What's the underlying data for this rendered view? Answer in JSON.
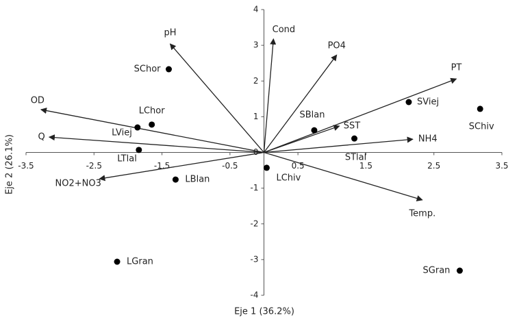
{
  "chart_data": {
    "type": "biplot",
    "xlabel": "Eje 1 (36.2%)",
    "ylabel": "Eje 2 (26.1%)",
    "xlim": [
      -3.5,
      3.5
    ],
    "ylim": [
      -4,
      4
    ],
    "xticks": [
      -3.5,
      -2.5,
      -1.5,
      -0.5,
      0.5,
      1.5,
      2.5,
      3.5
    ],
    "yticks": [
      -4,
      -3,
      -2,
      -1,
      0,
      1,
      2,
      3,
      4
    ],
    "points": {
      "color": "#000000",
      "labels": [
        "SChor",
        "LChor",
        "LViej",
        "LTlal",
        "LBlan",
        "LChiv",
        "SBlan",
        "STlal",
        "SViej",
        "SChiv",
        "LGran",
        "SGran"
      ],
      "x": [
        -1.4,
        -1.65,
        -1.86,
        -1.84,
        -1.3,
        0.04,
        0.74,
        1.33,
        2.13,
        3.18,
        -2.16,
        2.88
      ],
      "y": [
        2.33,
        0.78,
        0.7,
        0.07,
        -0.76,
        -0.43,
        0.62,
        0.39,
        1.41,
        1.22,
        -3.06,
        -3.31
      ]
    },
    "vectors": {
      "color": "#222222",
      "labels": [
        "pH",
        "Cond",
        "PO4",
        "PT",
        "OD",
        "Q",
        "NO2+NO3",
        "SST",
        "NH4",
        "Temp."
      ],
      "x": [
        -1.38,
        0.14,
        1.07,
        2.83,
        -3.28,
        -3.16,
        -2.42,
        1.11,
        2.19,
        2.33
      ],
      "y": [
        3.04,
        3.18,
        2.73,
        2.06,
        1.2,
        0.43,
        -0.74,
        0.74,
        0.37,
        -1.33
      ]
    }
  }
}
